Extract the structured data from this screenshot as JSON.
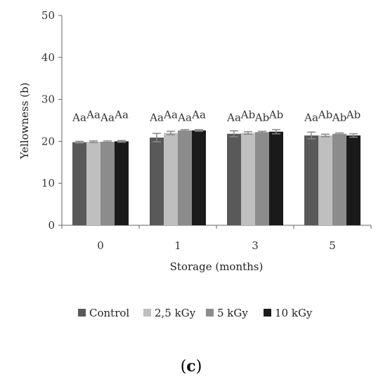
{
  "chart_data": {
    "type": "bar",
    "xlabel": "Storage (months)",
    "ylabel": "Yellowness (b)",
    "ylim": [
      0,
      50
    ],
    "yticks": [
      0,
      10,
      20,
      30,
      40,
      50
    ],
    "grid": false,
    "legend_position": "bottom",
    "categories": [
      "0",
      "1",
      "3",
      "5"
    ],
    "series": [
      {
        "name": "Control",
        "color": "#595959",
        "values": [
          19.8,
          20.9,
          21.8,
          21.4
        ],
        "errors": [
          0.2,
          1.0,
          0.7,
          0.8
        ]
      },
      {
        "name": "2,5 kGy",
        "color": "#bfbfbf",
        "values": [
          19.9,
          22.0,
          22.0,
          21.4
        ],
        "errors": [
          0.2,
          0.4,
          0.3,
          0.3
        ]
      },
      {
        "name": "5 kGy",
        "color": "#8c8c8c",
        "values": [
          19.9,
          22.6,
          22.2,
          21.8
        ],
        "errors": [
          0.2,
          0.2,
          0.2,
          0.2
        ]
      },
      {
        "name": "10 kGy",
        "color": "#1a1a1a",
        "values": [
          20.0,
          22.6,
          22.3,
          21.4
        ],
        "errors": [
          0.2,
          0.2,
          0.5,
          0.4
        ]
      }
    ],
    "annotations": [
      [
        "Aa",
        "Aa",
        "Aa",
        "Aa"
      ],
      [
        "Aa",
        "Aa",
        "Aa",
        "Aa"
      ],
      [
        "Aa",
        "Ab",
        "Ab",
        "Ab"
      ],
      [
        "Aa",
        "Ab",
        "Ab",
        "Ab"
      ]
    ]
  },
  "panel_label": "(c)"
}
